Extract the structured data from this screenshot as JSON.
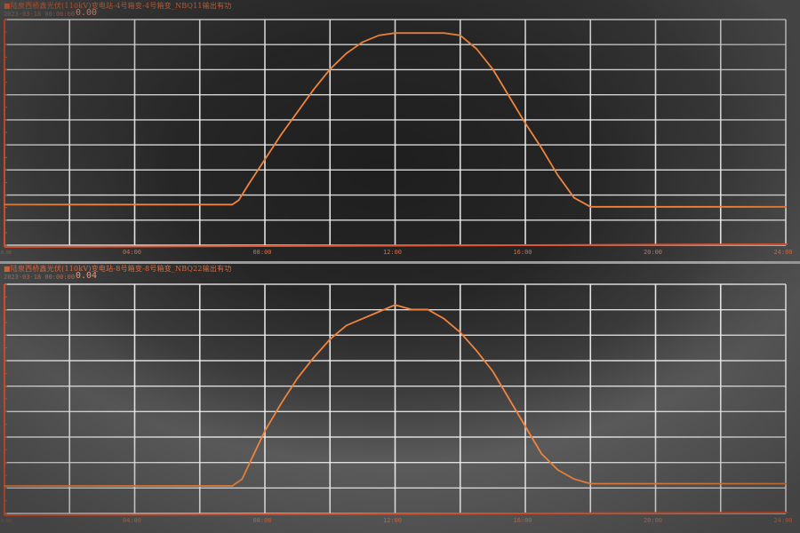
{
  "colors": {
    "grid": "#f2f2f2",
    "curve": "#f0843c",
    "axis": "#e0542f",
    "label": "#e06a3c"
  },
  "panels": [
    {
      "title": "■陆泉西桥鑫光伏(110kV)变电站-4号箱变-4号箱变_NBQ11输出有功",
      "timestamp": "2023-03-18 00:00:00",
      "current_value": "0.00",
      "y_bottom_label": "0.00"
    },
    {
      "title": "■陆泉西桥鑫光伏(110kV)变电站-8号箱变-8号箱变_NBQ22输出有功",
      "timestamp": "2023-03-18 00:00:00",
      "current_value": "0.04",
      "y_bottom_label": "0.00"
    }
  ],
  "chart_data": [
    {
      "type": "line",
      "title": "■陆泉西桥鑫光伏(110kV)变电站-4号箱变-4号箱变_NBQ11输出有功",
      "x_ticks": [
        "04:00",
        "08:00",
        "12:00",
        "16:00",
        "20:00",
        "24:00"
      ],
      "xlim": [
        0,
        24
      ],
      "ylim": [
        0,
        1
      ],
      "grid": true,
      "series": [
        {
          "x": [
            0,
            6.0,
            7.0,
            7.2,
            7.5,
            8.0,
            8.5,
            9.0,
            9.5,
            10.0,
            10.5,
            11.0,
            11.5,
            12.0,
            12.5,
            13.0,
            13.5,
            14.0,
            14.5,
            15.0,
            15.5,
            16.0,
            16.5,
            17.0,
            17.5,
            18.0,
            18.5,
            19.0,
            20.0,
            24.0
          ],
          "y": [
            0.18,
            0.18,
            0.18,
            0.2,
            0.27,
            0.38,
            0.49,
            0.59,
            0.69,
            0.78,
            0.85,
            0.9,
            0.93,
            0.94,
            0.94,
            0.94,
            0.94,
            0.93,
            0.87,
            0.78,
            0.66,
            0.54,
            0.43,
            0.31,
            0.21,
            0.17,
            0.17,
            0.17,
            0.17,
            0.17
          ]
        }
      ]
    },
    {
      "type": "line",
      "title": "■陆泉西桥鑫光伏(110kV)变电站-8号箱变-8号箱变_NBQ22输出有功",
      "x_ticks": [
        "04:00",
        "08:00",
        "12:00",
        "16:00",
        "20:00",
        "24:00"
      ],
      "xlim": [
        0,
        24
      ],
      "ylim": [
        0,
        1
      ],
      "grid": true,
      "series": [
        {
          "x": [
            0,
            6.0,
            7.0,
            7.3,
            7.6,
            8.0,
            8.5,
            9.0,
            9.5,
            10.0,
            10.5,
            11.0,
            11.5,
            12.0,
            12.5,
            13.0,
            13.5,
            14.0,
            14.5,
            15.0,
            15.5,
            16.0,
            16.5,
            17.0,
            17.5,
            18.0,
            18.5,
            19.0,
            20.0,
            24.0
          ],
          "y": [
            0.12,
            0.12,
            0.12,
            0.15,
            0.24,
            0.36,
            0.48,
            0.59,
            0.68,
            0.76,
            0.82,
            0.85,
            0.88,
            0.91,
            0.89,
            0.89,
            0.85,
            0.79,
            0.71,
            0.62,
            0.5,
            0.38,
            0.26,
            0.19,
            0.15,
            0.13,
            0.13,
            0.13,
            0.13,
            0.13
          ]
        }
      ]
    }
  ]
}
